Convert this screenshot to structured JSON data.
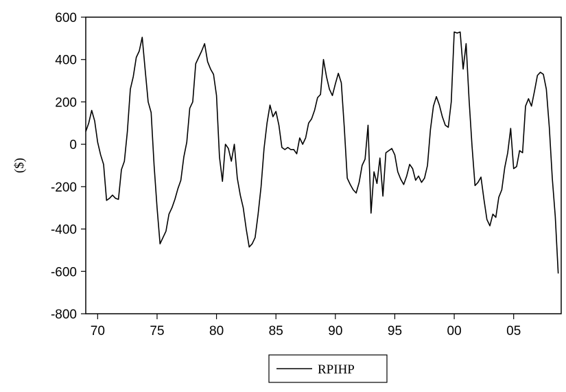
{
  "chart_data": {
    "type": "line",
    "title": "",
    "xlabel": "",
    "ylabel": "($)",
    "ylim": [
      -800,
      600
    ],
    "yticks": [
      -800,
      -600,
      -400,
      -200,
      0,
      200,
      400,
      600
    ],
    "ytick_labels": [
      "-800",
      "-600",
      "-400",
      "-200",
      "0",
      "200",
      "400",
      "600"
    ],
    "xlim": [
      1969.0,
      2009.0
    ],
    "xticks": [
      1970,
      1975,
      1980,
      1985,
      1990,
      1995,
      2000,
      2005
    ],
    "xtick_labels": [
      "70",
      "75",
      "80",
      "85",
      "90",
      "95",
      "00",
      "05"
    ],
    "grid": false,
    "legend_position": "bottom-center",
    "series": [
      {
        "name": "RPIHP",
        "color": "#000000",
        "x": [
          1969.0,
          1969.25,
          1969.5,
          1969.75,
          1970.0,
          1970.25,
          1970.5,
          1970.75,
          1971.0,
          1971.25,
          1971.5,
          1971.75,
          1972.0,
          1972.25,
          1972.5,
          1972.75,
          1973.0,
          1973.25,
          1973.5,
          1973.75,
          1974.0,
          1974.25,
          1974.5,
          1974.75,
          1975.0,
          1975.25,
          1975.5,
          1975.75,
          1976.0,
          1976.25,
          1976.5,
          1976.75,
          1977.0,
          1977.25,
          1977.5,
          1977.75,
          1978.0,
          1978.25,
          1978.5,
          1978.75,
          1979.0,
          1979.25,
          1979.5,
          1979.75,
          1980.0,
          1980.25,
          1980.5,
          1980.75,
          1981.0,
          1981.25,
          1981.5,
          1981.75,
          1982.0,
          1982.25,
          1982.5,
          1982.75,
          1983.0,
          1983.25,
          1983.5,
          1983.75,
          1984.0,
          1984.25,
          1984.5,
          1984.75,
          1985.0,
          1985.25,
          1985.5,
          1985.75,
          1986.0,
          1986.25,
          1986.5,
          1986.75,
          1987.0,
          1987.25,
          1987.5,
          1987.75,
          1988.0,
          1988.25,
          1988.5,
          1988.75,
          1989.0,
          1989.25,
          1989.5,
          1989.75,
          1990.0,
          1990.25,
          1990.5,
          1990.75,
          1991.0,
          1991.25,
          1991.5,
          1991.75,
          1992.0,
          1992.25,
          1992.5,
          1992.75,
          1993.0,
          1993.25,
          1993.5,
          1993.75,
          1994.0,
          1994.25,
          1994.5,
          1994.75,
          1995.0,
          1995.25,
          1995.5,
          1995.75,
          1996.0,
          1996.25,
          1996.5,
          1996.75,
          1997.0,
          1997.25,
          1997.5,
          1997.75,
          1998.0,
          1998.25,
          1998.5,
          1998.75,
          1999.0,
          1999.25,
          1999.5,
          1999.75,
          2000.0,
          2000.25,
          2000.5,
          2000.75,
          2001.0,
          2001.25,
          2001.5,
          2001.75,
          2002.0,
          2002.25,
          2002.5,
          2002.75,
          2003.0,
          2003.25,
          2003.5,
          2003.75,
          2004.0,
          2004.25,
          2004.5,
          2004.75,
          2005.0,
          2005.25,
          2005.5,
          2005.75,
          2006.0,
          2006.25,
          2006.5,
          2006.75,
          2007.0,
          2007.25,
          2007.5,
          2007.75,
          2008.0,
          2008.25,
          2008.5,
          2008.75
        ],
        "values": [
          60,
          100,
          160,
          110,
          10,
          -50,
          -95,
          -265,
          -255,
          -240,
          -255,
          -260,
          -120,
          -80,
          60,
          260,
          320,
          410,
          440,
          505,
          350,
          200,
          150,
          -100,
          -300,
          -470,
          -440,
          -410,
          -330,
          -300,
          -260,
          -210,
          -170,
          -60,
          10,
          170,
          200,
          380,
          410,
          440,
          475,
          390,
          355,
          330,
          230,
          -60,
          -175,
          0,
          -20,
          -80,
          0,
          -160,
          -240,
          -300,
          -400,
          -485,
          -470,
          -440,
          -330,
          -200,
          -20,
          100,
          185,
          130,
          155,
          90,
          -15,
          -25,
          -15,
          -25,
          -25,
          -45,
          30,
          0,
          30,
          100,
          120,
          160,
          220,
          235,
          400,
          320,
          260,
          230,
          285,
          335,
          290,
          80,
          -160,
          -190,
          -215,
          -230,
          -180,
          -100,
          -70,
          90,
          -325,
          -130,
          -185,
          -65,
          -245,
          -40,
          -30,
          -20,
          -50,
          -130,
          -165,
          -190,
          -150,
          -95,
          -115,
          -170,
          -150,
          -180,
          -160,
          -100,
          70,
          180,
          225,
          185,
          130,
          90,
          80,
          200,
          530,
          525,
          530,
          355,
          475,
          210,
          -10,
          -195,
          -180,
          -155,
          -260,
          -355,
          -385,
          -330,
          -345,
          -250,
          -215,
          -110,
          -40,
          75,
          -115,
          -105,
          -30,
          -40,
          180,
          215,
          180,
          250,
          325,
          340,
          330,
          260,
          80,
          -160,
          -340,
          -610
        ]
      }
    ]
  }
}
